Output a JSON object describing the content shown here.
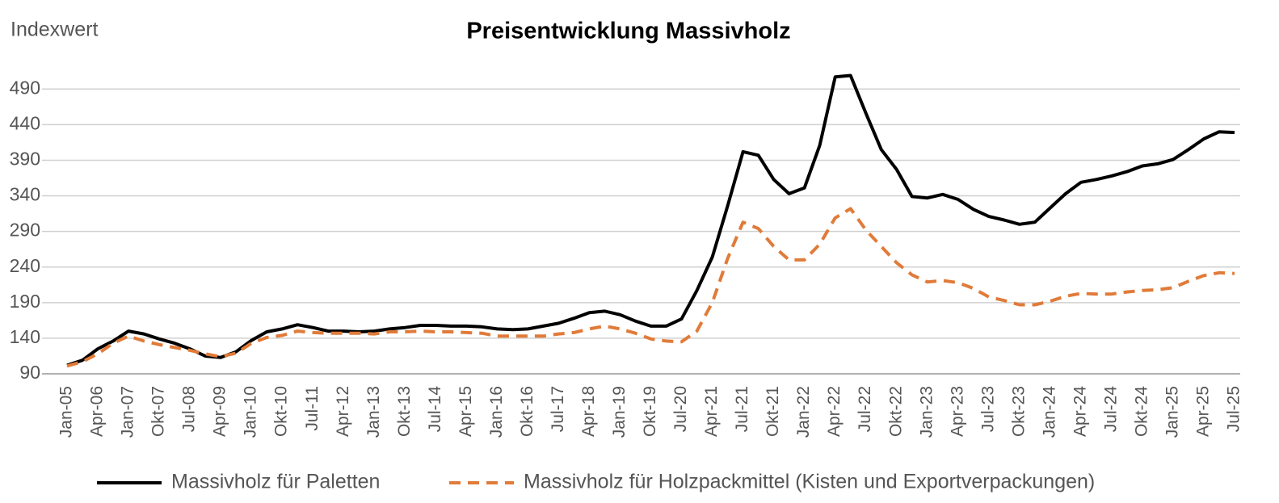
{
  "chart_data": {
    "type": "line",
    "title": "Preisentwicklung Massivholz",
    "y_label": "Indexwert",
    "categories": [
      "Jan-05",
      null,
      "Apr-06",
      null,
      "Jan-07",
      null,
      "Okt-07",
      null,
      "Jul-08",
      null,
      "Apr-09",
      null,
      "Jan-10",
      null,
      "Okt-10",
      null,
      "Jul-11",
      null,
      "Apr-12",
      null,
      "Jan-13",
      null,
      "Okt-13",
      null,
      "Jul-14",
      null,
      "Apr-15",
      null,
      "Jan-16",
      null,
      "Okt-16",
      null,
      "Jul-17",
      null,
      "Apr-18",
      null,
      "Jan-19",
      null,
      "Okt-19",
      null,
      "Jul-20",
      null,
      "Apr-21",
      null,
      "Jul-21",
      null,
      "Okt-21",
      null,
      "Jan-22",
      null,
      "Apr-22",
      null,
      "Jul-22",
      null,
      "Okt-22",
      null,
      "Jan-23",
      null,
      "Apr-23",
      null,
      "Jul-23",
      null,
      "Okt-23",
      null,
      "Jan-24",
      null,
      "Apr-24",
      null,
      "Jul-24",
      null,
      "Okt-24",
      null,
      "Jan-25",
      null,
      "Apr-25",
      null,
      "Jul-25"
    ],
    "series": [
      {
        "name": "Massivholz für Paletten",
        "color": "#000000",
        "dashed": false,
        "values": [
          102,
          109,
          125,
          136,
          150,
          146,
          139,
          133,
          125,
          115,
          113,
          121,
          137,
          149,
          153,
          159,
          155,
          150,
          150,
          149,
          150,
          153,
          155,
          158,
          158,
          157,
          157,
          156,
          153,
          152,
          153,
          157,
          161,
          168,
          176,
          178,
          173,
          164,
          157,
          157,
          167,
          207,
          254,
          326,
          402,
          397,
          363,
          343,
          351,
          411,
          507,
          509,
          456,
          405,
          377,
          339,
          337,
          342,
          335,
          321,
          311,
          306,
          300,
          303,
          323,
          343,
          359,
          363,
          368,
          374,
          382,
          385,
          391,
          405,
          420,
          430,
          429
        ]
      },
      {
        "name": "Massivholz für Holzpackmittel (Kisten und Exportverpackungen)",
        "color": "#e07b39",
        "dashed": true,
        "values": [
          101,
          107,
          118,
          133,
          143,
          136,
          131,
          127,
          123,
          118,
          114,
          119,
          133,
          141,
          144,
          150,
          148,
          147,
          147,
          147,
          146,
          149,
          149,
          150,
          149,
          149,
          148,
          147,
          143,
          143,
          143,
          143,
          146,
          148,
          153,
          157,
          153,
          147,
          139,
          136,
          135,
          150,
          190,
          252,
          303,
          294,
          269,
          250,
          250,
          272,
          309,
          322,
          292,
          269,
          246,
          229,
          219,
          221,
          218,
          210,
          198,
          193,
          187,
          187,
          192,
          199,
          203,
          202,
          202,
          205,
          207,
          208,
          211,
          220,
          228,
          232,
          231
        ]
      }
    ],
    "ylim": [
      90,
      530
    ],
    "yticks": [
      90,
      140,
      190,
      240,
      290,
      340,
      390,
      440,
      490
    ],
    "grid": true
  }
}
